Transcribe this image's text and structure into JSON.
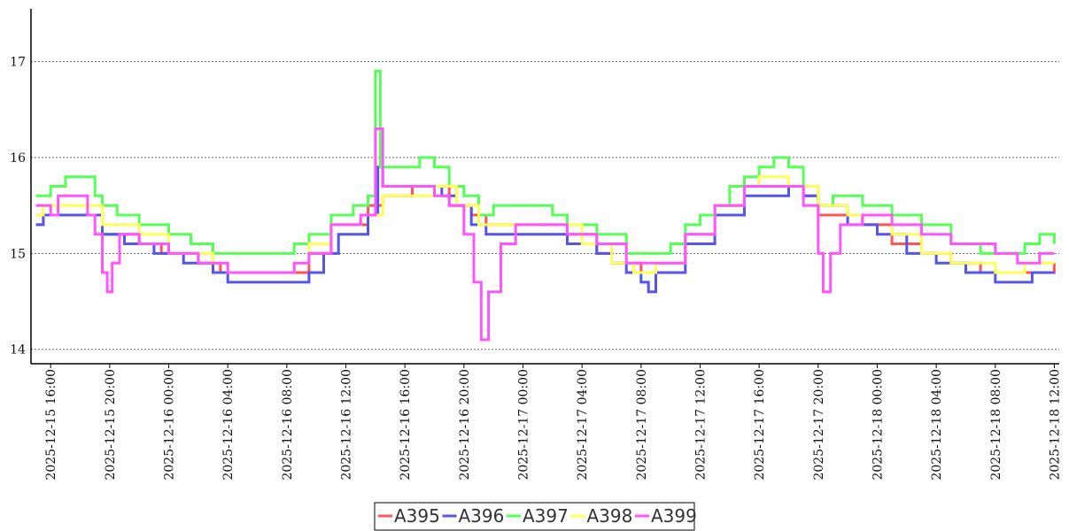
{
  "chart_data": {
    "type": "line",
    "x_unit": "datetime",
    "xlim": [
      "2025-12-15 14:40",
      "2025-12-18 12:20"
    ],
    "ylim": [
      13.85,
      17.55
    ],
    "y_ticks": [
      14,
      15,
      16,
      17
    ],
    "x_ticks": [
      "2025-12-15 16:00",
      "2025-12-15 20:00",
      "2025-12-16 00:00",
      "2025-12-16 04:00",
      "2025-12-16 08:00",
      "2025-12-16 12:00",
      "2025-12-16 16:00",
      "2025-12-16 20:00",
      "2025-12-17 00:00",
      "2025-12-17 04:00",
      "2025-12-17 08:00",
      "2025-12-17 12:00",
      "2025-12-17 16:00",
      "2025-12-17 20:00",
      "2025-12-18 00:00",
      "2025-12-18 04:00",
      "2025-12-18 08:00",
      "2025-12-18 12:00"
    ],
    "grid": "horizontal dotted",
    "legend_position": "bottom-center",
    "series": [
      {
        "name": "A395",
        "color": "#ff5555",
        "points": [
          [
            "2025-12-15 15:00",
            15.3
          ],
          [
            "2025-12-15 15:30",
            15.4
          ],
          [
            "2025-12-15 18:30",
            15.4
          ],
          [
            "2025-12-15 19:30",
            15.2
          ],
          [
            "2025-12-15 22:00",
            15.1
          ],
          [
            "2025-12-15 23:30",
            15.0
          ],
          [
            "2025-12-16 02:00",
            14.9
          ],
          [
            "2025-12-16 03:30",
            14.8
          ],
          [
            "2025-12-16 06:00",
            14.8
          ],
          [
            "2025-12-16 08:30",
            14.8
          ],
          [
            "2025-12-16 09:30",
            15.0
          ],
          [
            "2025-12-16 11:00",
            15.3
          ],
          [
            "2025-12-16 13:30",
            15.5
          ],
          [
            "2025-12-16 14:30",
            15.6
          ],
          [
            "2025-12-16 16:30",
            15.7
          ],
          [
            "2025-12-16 19:00",
            15.5
          ],
          [
            "2025-12-16 20:30",
            15.4
          ],
          [
            "2025-12-16 21:30",
            15.3
          ],
          [
            "2025-12-17 02:00",
            15.3
          ],
          [
            "2025-12-17 03:00",
            15.2
          ],
          [
            "2025-12-17 05:00",
            15.0
          ],
          [
            "2025-12-17 06:00",
            14.9
          ],
          [
            "2025-12-17 08:00",
            14.8
          ],
          [
            "2025-12-17 09:00",
            14.9
          ],
          [
            "2025-12-17 11:00",
            15.2
          ],
          [
            "2025-12-17 13:00",
            15.5
          ],
          [
            "2025-12-17 15:00",
            15.7
          ],
          [
            "2025-12-17 18:00",
            15.7
          ],
          [
            "2025-12-17 19:00",
            15.6
          ],
          [
            "2025-12-17 20:00",
            15.4
          ],
          [
            "2025-12-17 23:00",
            15.3
          ],
          [
            "2025-12-18 01:00",
            15.1
          ],
          [
            "2025-12-18 03:00",
            15.0
          ],
          [
            "2025-12-18 05:00",
            14.9
          ],
          [
            "2025-12-18 07:00",
            14.8
          ],
          [
            "2025-12-18 09:00",
            14.8
          ],
          [
            "2025-12-18 12:00",
            14.9
          ]
        ]
      },
      {
        "name": "A396",
        "color": "#5555ee",
        "points": [
          [
            "2025-12-15 15:00",
            15.3
          ],
          [
            "2025-12-15 15:30",
            15.4
          ],
          [
            "2025-12-15 18:30",
            15.4
          ],
          [
            "2025-12-15 19:30",
            15.2
          ],
          [
            "2025-12-15 21:00",
            15.1
          ],
          [
            "2025-12-15 23:00",
            15.0
          ],
          [
            "2025-12-16 01:00",
            14.9
          ],
          [
            "2025-12-16 03:00",
            14.8
          ],
          [
            "2025-12-16 04:00",
            14.7
          ],
          [
            "2025-12-16 09:00",
            14.7
          ],
          [
            "2025-12-16 09:30",
            14.8
          ],
          [
            "2025-12-16 10:30",
            15.0
          ],
          [
            "2025-12-16 11:30",
            15.2
          ],
          [
            "2025-12-16 13:30",
            15.4
          ],
          [
            "2025-12-16 14:10",
            15.9
          ],
          [
            "2025-12-16 14:30",
            15.7
          ],
          [
            "2025-12-16 18:30",
            15.6
          ],
          [
            "2025-12-16 19:30",
            15.5
          ],
          [
            "2025-12-16 20:30",
            15.3
          ],
          [
            "2025-12-16 21:30",
            15.2
          ],
          [
            "2025-12-17 02:00",
            15.2
          ],
          [
            "2025-12-17 03:00",
            15.1
          ],
          [
            "2025-12-17 05:00",
            15.0
          ],
          [
            "2025-12-17 06:00",
            14.9
          ],
          [
            "2025-12-17 07:00",
            14.8
          ],
          [
            "2025-12-17 08:00",
            14.7
          ],
          [
            "2025-12-17 08:30",
            14.6
          ],
          [
            "2025-12-17 09:00",
            14.8
          ],
          [
            "2025-12-17 11:00",
            15.1
          ],
          [
            "2025-12-17 13:00",
            15.4
          ],
          [
            "2025-12-17 15:00",
            15.6
          ],
          [
            "2025-12-17 18:00",
            15.7
          ],
          [
            "2025-12-17 19:00",
            15.6
          ],
          [
            "2025-12-17 20:00",
            15.5
          ],
          [
            "2025-12-17 22:00",
            15.3
          ],
          [
            "2025-12-18 00:00",
            15.2
          ],
          [
            "2025-12-18 02:00",
            15.0
          ],
          [
            "2025-12-18 04:00",
            14.9
          ],
          [
            "2025-12-18 06:00",
            14.8
          ],
          [
            "2025-12-18 08:00",
            14.7
          ],
          [
            "2025-12-18 10:00",
            14.7
          ],
          [
            "2025-12-18 10:30",
            14.8
          ],
          [
            "2025-12-18 12:00",
            14.8
          ]
        ]
      },
      {
        "name": "A397",
        "color": "#55ff55",
        "points": [
          [
            "2025-12-15 15:00",
            15.6
          ],
          [
            "2025-12-15 16:00",
            15.7
          ],
          [
            "2025-12-15 17:00",
            15.8
          ],
          [
            "2025-12-15 18:40",
            15.8
          ],
          [
            "2025-12-15 19:00",
            15.6
          ],
          [
            "2025-12-15 19:30",
            15.5
          ],
          [
            "2025-12-15 20:30",
            15.4
          ],
          [
            "2025-12-15 22:00",
            15.3
          ],
          [
            "2025-12-16 00:00",
            15.2
          ],
          [
            "2025-12-16 01:30",
            15.1
          ],
          [
            "2025-12-16 03:00",
            15.0
          ],
          [
            "2025-12-16 08:00",
            15.0
          ],
          [
            "2025-12-16 08:30",
            15.1
          ],
          [
            "2025-12-16 09:30",
            15.2
          ],
          [
            "2025-12-16 11:00",
            15.4
          ],
          [
            "2025-12-16 12:30",
            15.5
          ],
          [
            "2025-12-16 13:30",
            15.6
          ],
          [
            "2025-12-16 14:00",
            16.9
          ],
          [
            "2025-12-16 14:20",
            15.9
          ],
          [
            "2025-12-16 16:00",
            15.9
          ],
          [
            "2025-12-16 17:00",
            16.0
          ],
          [
            "2025-12-16 18:00",
            15.9
          ],
          [
            "2025-12-16 19:00",
            15.7
          ],
          [
            "2025-12-16 20:00",
            15.6
          ],
          [
            "2025-12-16 21:00",
            15.4
          ],
          [
            "2025-12-16 22:00",
            15.5
          ],
          [
            "2025-12-17 01:00",
            15.5
          ],
          [
            "2025-12-17 02:00",
            15.4
          ],
          [
            "2025-12-17 03:00",
            15.3
          ],
          [
            "2025-12-17 05:00",
            15.2
          ],
          [
            "2025-12-17 07:00",
            15.0
          ],
          [
            "2025-12-17 09:00",
            15.0
          ],
          [
            "2025-12-17 10:00",
            15.1
          ],
          [
            "2025-12-17 11:00",
            15.3
          ],
          [
            "2025-12-17 12:00",
            15.4
          ],
          [
            "2025-12-17 13:00",
            15.5
          ],
          [
            "2025-12-17 14:00",
            15.7
          ],
          [
            "2025-12-17 15:00",
            15.8
          ],
          [
            "2025-12-17 16:00",
            15.9
          ],
          [
            "2025-12-17 17:00",
            16.0
          ],
          [
            "2025-12-17 18:00",
            15.9
          ],
          [
            "2025-12-17 19:00",
            15.7
          ],
          [
            "2025-12-17 20:00",
            15.5
          ],
          [
            "2025-12-17 21:00",
            15.6
          ],
          [
            "2025-12-17 23:00",
            15.5
          ],
          [
            "2025-12-18 01:00",
            15.4
          ],
          [
            "2025-12-18 03:00",
            15.3
          ],
          [
            "2025-12-18 05:00",
            15.1
          ],
          [
            "2025-12-18 07:00",
            15.0
          ],
          [
            "2025-12-18 10:00",
            15.1
          ],
          [
            "2025-12-18 11:00",
            15.2
          ],
          [
            "2025-12-18 12:00",
            15.1
          ]
        ]
      },
      {
        "name": "A398",
        "color": "#ffff55",
        "points": [
          [
            "2025-12-15 15:00",
            15.4
          ],
          [
            "2025-12-15 15:30",
            15.5
          ],
          [
            "2025-12-15 18:30",
            15.5
          ],
          [
            "2025-12-15 19:30",
            15.3
          ],
          [
            "2025-12-15 22:00",
            15.2
          ],
          [
            "2025-12-16 00:00",
            15.0
          ],
          [
            "2025-12-16 03:00",
            14.9
          ],
          [
            "2025-12-16 04:00",
            14.8
          ],
          [
            "2025-12-16 08:30",
            14.9
          ],
          [
            "2025-12-16 09:30",
            15.1
          ],
          [
            "2025-12-16 11:00",
            15.3
          ],
          [
            "2025-12-16 13:00",
            15.4
          ],
          [
            "2025-12-16 14:30",
            15.6
          ],
          [
            "2025-12-16 18:00",
            15.7
          ],
          [
            "2025-12-16 19:30",
            15.5
          ],
          [
            "2025-12-16 21:00",
            15.3
          ],
          [
            "2025-12-17 02:00",
            15.3
          ],
          [
            "2025-12-17 04:00",
            15.1
          ],
          [
            "2025-12-17 06:00",
            14.9
          ],
          [
            "2025-12-17 07:30",
            14.8
          ],
          [
            "2025-12-17 09:00",
            14.9
          ],
          [
            "2025-12-17 11:00",
            15.2
          ],
          [
            "2025-12-17 13:00",
            15.5
          ],
          [
            "2025-12-17 15:00",
            15.7
          ],
          [
            "2025-12-17 16:00",
            15.8
          ],
          [
            "2025-12-17 18:00",
            15.7
          ],
          [
            "2025-12-17 20:00",
            15.5
          ],
          [
            "2025-12-17 22:00",
            15.4
          ],
          [
            "2025-12-18 01:00",
            15.2
          ],
          [
            "2025-12-18 03:00",
            15.0
          ],
          [
            "2025-12-18 05:00",
            14.9
          ],
          [
            "2025-12-18 08:00",
            14.8
          ],
          [
            "2025-12-18 10:00",
            14.9
          ],
          [
            "2025-12-18 12:00",
            14.9
          ]
        ]
      },
      {
        "name": "A399",
        "color": "#ff55ff",
        "points": [
          [
            "2025-12-15 15:00",
            15.5
          ],
          [
            "2025-12-15 16:00",
            15.4
          ],
          [
            "2025-12-15 16:30",
            15.6
          ],
          [
            "2025-12-15 17:30",
            15.6
          ],
          [
            "2025-12-15 18:30",
            15.4
          ],
          [
            "2025-12-15 19:00",
            15.2
          ],
          [
            "2025-12-15 19:30",
            14.8
          ],
          [
            "2025-12-15 19:50",
            14.6
          ],
          [
            "2025-12-15 20:10",
            14.9
          ],
          [
            "2025-12-15 20:40",
            15.2
          ],
          [
            "2025-12-15 22:00",
            15.1
          ],
          [
            "2025-12-16 00:00",
            15.0
          ],
          [
            "2025-12-16 02:00",
            14.9
          ],
          [
            "2025-12-16 04:00",
            14.8
          ],
          [
            "2025-12-16 08:00",
            14.8
          ],
          [
            "2025-12-16 08:30",
            14.9
          ],
          [
            "2025-12-16 09:30",
            15.0
          ],
          [
            "2025-12-16 11:00",
            15.3
          ],
          [
            "2025-12-16 13:00",
            15.4
          ],
          [
            "2025-12-16 14:00",
            16.3
          ],
          [
            "2025-12-16 14:30",
            15.7
          ],
          [
            "2025-12-16 18:00",
            15.6
          ],
          [
            "2025-12-16 19:00",
            15.5
          ],
          [
            "2025-12-16 20:00",
            15.2
          ],
          [
            "2025-12-16 20:40",
            14.7
          ],
          [
            "2025-12-16 21:10",
            14.1
          ],
          [
            "2025-12-16 21:40",
            14.6
          ],
          [
            "2025-12-16 22:30",
            15.1
          ],
          [
            "2025-12-16 23:30",
            15.3
          ],
          [
            "2025-12-17 02:00",
            15.3
          ],
          [
            "2025-12-17 03:00",
            15.2
          ],
          [
            "2025-12-17 05:00",
            15.1
          ],
          [
            "2025-12-17 07:00",
            14.9
          ],
          [
            "2025-12-17 09:00",
            14.9
          ],
          [
            "2025-12-17 11:00",
            15.2
          ],
          [
            "2025-12-17 13:00",
            15.5
          ],
          [
            "2025-12-17 15:00",
            15.7
          ],
          [
            "2025-12-17 18:00",
            15.7
          ],
          [
            "2025-12-17 19:00",
            15.5
          ],
          [
            "2025-12-17 20:00",
            15.0
          ],
          [
            "2025-12-17 20:20",
            14.6
          ],
          [
            "2025-12-17 20:50",
            15.0
          ],
          [
            "2025-12-17 21:30",
            15.3
          ],
          [
            "2025-12-17 23:00",
            15.4
          ],
          [
            "2025-12-18 01:00",
            15.3
          ],
          [
            "2025-12-18 03:00",
            15.2
          ],
          [
            "2025-12-18 05:00",
            15.1
          ],
          [
            "2025-12-18 08:00",
            15.0
          ],
          [
            "2025-12-18 09:30",
            14.9
          ],
          [
            "2025-12-18 11:00",
            15.0
          ],
          [
            "2025-12-18 12:00",
            15.0
          ]
        ]
      }
    ]
  }
}
